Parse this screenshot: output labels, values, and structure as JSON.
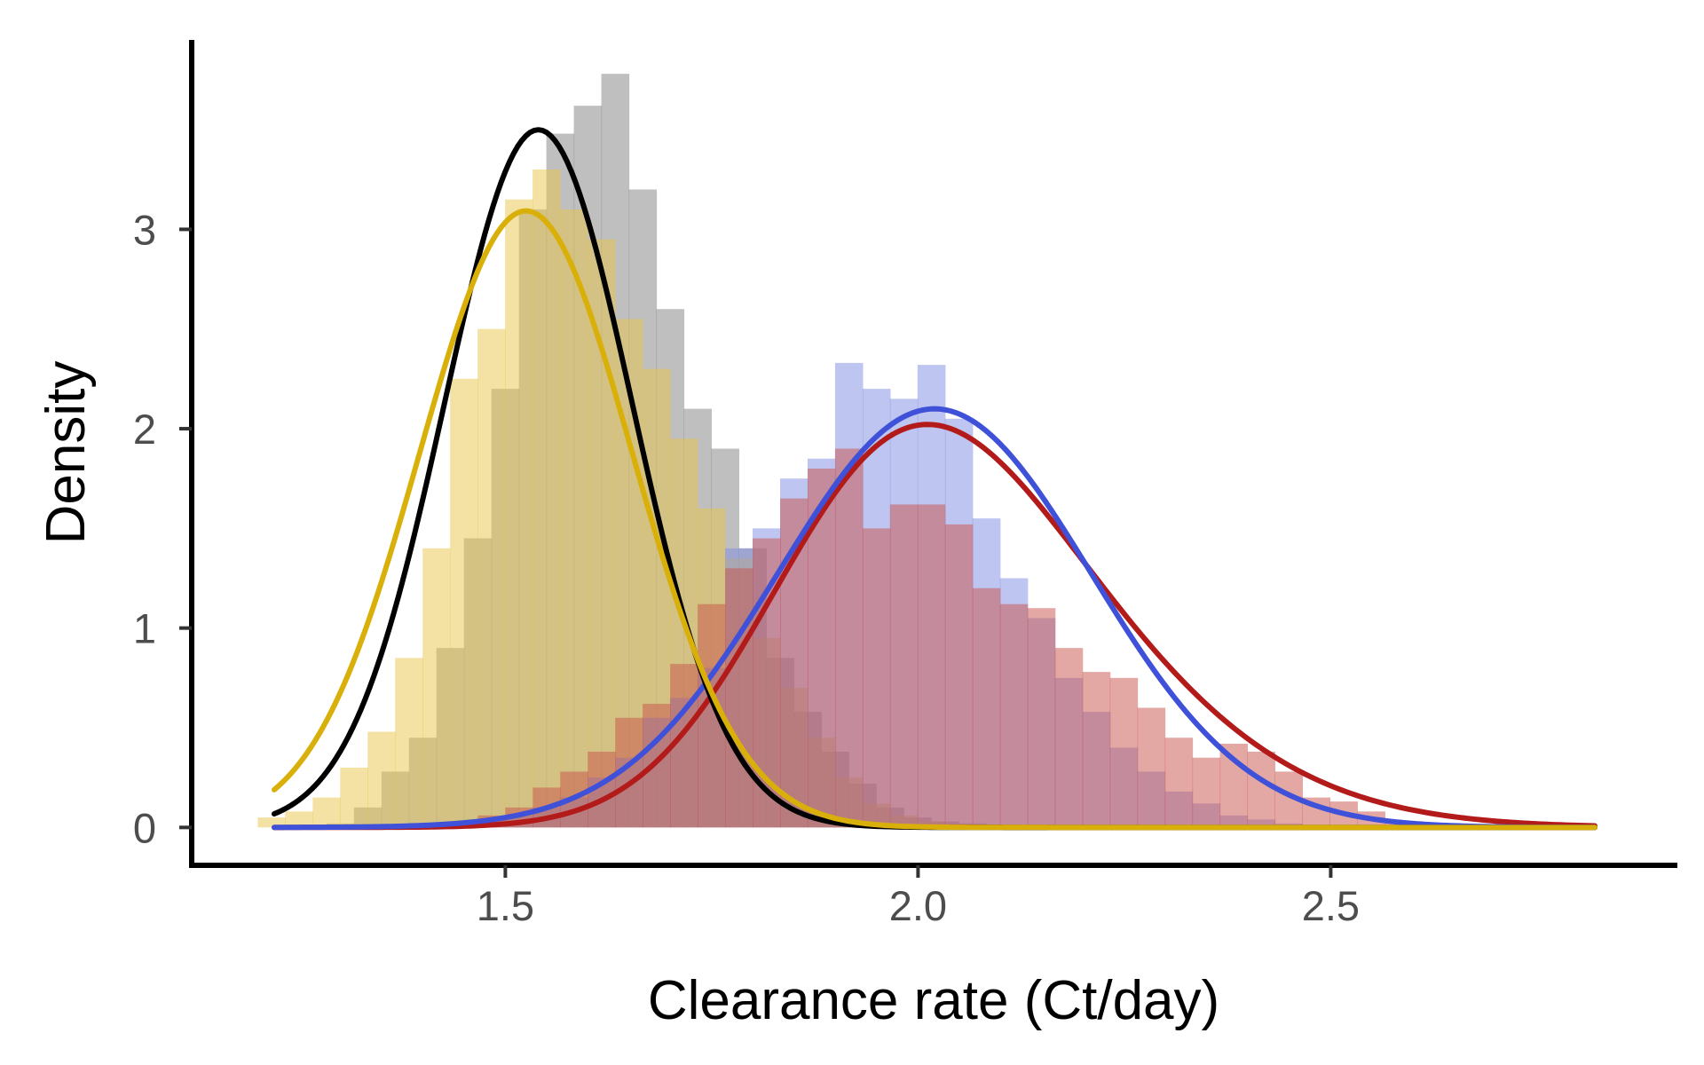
{
  "chart_data": {
    "type": "histogram",
    "xlabel": "Clearance rate (Ct/day)",
    "ylabel": "Density",
    "xlim": [
      1.12,
      2.92
    ],
    "ylim": [
      -0.19,
      3.95
    ],
    "xticks": [
      {
        "value": 1.5,
        "label": "1.5"
      },
      {
        "value": 2.0,
        "label": "2.0"
      },
      {
        "value": 2.5,
        "label": "2.5"
      }
    ],
    "yticks": [
      {
        "value": 0,
        "label": "0"
      },
      {
        "value": 1,
        "label": "1"
      },
      {
        "value": 2,
        "label": "2"
      },
      {
        "value": 3,
        "label": "3"
      }
    ],
    "grid": false,
    "legend": "none",
    "bin_width": 0.0333,
    "series": [
      {
        "color": "#7f7f7f",
        "line_color": "#000000",
        "bin_start": 1.2167,
        "hist": [
          0,
          0,
          0.02,
          0.1,
          0.28,
          0.45,
          0.9,
          1.45,
          2.2,
          3.1,
          3.48,
          3.62,
          3.78,
          3.2,
          2.6,
          2.1,
          1.9,
          1.4,
          0.85,
          0.58,
          0.38,
          0.22,
          0.1,
          0.05,
          0.03,
          0.02,
          0.01,
          0,
          0,
          0
        ],
        "density": {
          "type": "normal",
          "mean": 1.54,
          "sd": 0.114
        }
      },
      {
        "color": "#e8c547",
        "line_color": "#d9b00a",
        "bin_start": 1.2,
        "hist": [
          0.05,
          0.08,
          0.15,
          0.3,
          0.48,
          0.85,
          1.4,
          2.25,
          2.5,
          3.15,
          3.3,
          3.1,
          2.95,
          2.55,
          2.3,
          1.95,
          1.6,
          1.35,
          0.95,
          0.7,
          0.45,
          0.25,
          0.12,
          0.06,
          0.03,
          0.02,
          0.01,
          0,
          0,
          0
        ],
        "density": {
          "type": "normal",
          "mean": 1.525,
          "sd": 0.129
        }
      },
      {
        "color": "#7d8be2",
        "line_color": "#3f51d8",
        "bin_start": 1.4,
        "hist": [
          0.01,
          0.02,
          0.04,
          0.06,
          0.1,
          0.15,
          0.25,
          0.35,
          0.55,
          0.65,
          0.8,
          1.4,
          1.5,
          1.75,
          1.85,
          2.33,
          2.2,
          2.15,
          2.32,
          2.05,
          1.55,
          1.25,
          1.05,
          0.75,
          0.58,
          0.4,
          0.28,
          0.18,
          0.12,
          0.06,
          0.04,
          0.02,
          0.01,
          0.01,
          0.01,
          0,
          0,
          0,
          0,
          0
        ],
        "density": {
          "type": "normal",
          "mean": 2.02,
          "sd": 0.19
        }
      },
      {
        "color": "#c9524a",
        "line_color": "#b31b1b",
        "bin_start": 1.4,
        "hist": [
          0.02,
          0.03,
          0.06,
          0.1,
          0.2,
          0.28,
          0.38,
          0.55,
          0.62,
          0.82,
          1.12,
          1.3,
          1.45,
          1.65,
          1.8,
          1.9,
          1.5,
          1.62,
          1.62,
          1.52,
          1.2,
          1.12,
          1.1,
          0.9,
          0.78,
          0.75,
          0.6,
          0.45,
          0.35,
          0.42,
          0.38,
          0.28,
          0.15,
          0.13,
          0.08,
          0.03,
          0.02,
          0.02,
          0.01,
          0.01
        ],
        "density": {
          "type": "skewnormal",
          "location": 1.86,
          "scale": 0.28,
          "alpha": 1.7
        }
      }
    ]
  }
}
